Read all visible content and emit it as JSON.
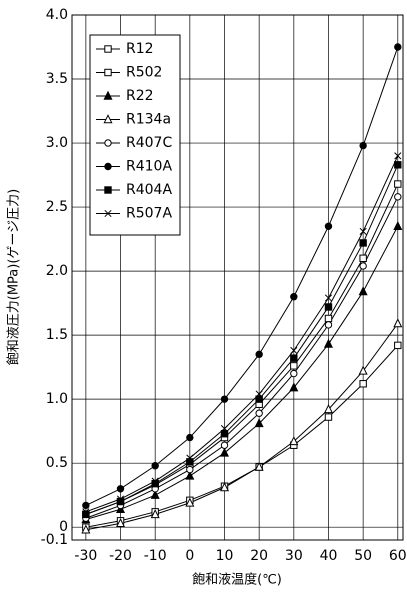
{
  "chart_data": {
    "type": "line",
    "x_label": "飽和液温度(℃)",
    "y_label": "飽和液圧力(MPa)(ゲージ圧力)",
    "x": [
      -30,
      -20,
      -10,
      0,
      10,
      20,
      30,
      40,
      50,
      60
    ],
    "xlim": [
      -34,
      61.5
    ],
    "xticks": [
      -30,
      -20,
      -10,
      0,
      10,
      20,
      30,
      40,
      50,
      60
    ],
    "ylim": [
      -0.1,
      4.0
    ],
    "yticks": [
      -0.1,
      0,
      0.5,
      {
        "value": 1,
        "label": "1.0"
      },
      1.5,
      {
        "value": 2,
        "label": "2.0"
      },
      2.5,
      {
        "value": 3,
        "label": "3.0"
      },
      3.5,
      {
        "value": 4,
        "label": "4.0"
      }
    ],
    "grid": true,
    "legend": "upper left",
    "series": [
      {
        "name": "R12",
        "color": "#000000",
        "marker": "square-open",
        "values": [
          0.0,
          0.05,
          0.12,
          0.21,
          0.32,
          0.47,
          0.64,
          0.86,
          1.12,
          1.42
        ]
      },
      {
        "name": "R502",
        "color": "#000000",
        "marker": "square-open",
        "values": [
          0.1,
          0.2,
          0.33,
          0.49,
          0.7,
          0.96,
          1.26,
          1.63,
          2.1,
          2.68
        ]
      },
      {
        "name": "R22",
        "color": "#000000",
        "marker": "triangle-filled",
        "values": [
          0.06,
          0.14,
          0.25,
          0.4,
          0.58,
          0.81,
          1.09,
          1.43,
          1.84,
          2.35
        ]
      },
      {
        "name": "R134a",
        "color": "#000000",
        "marker": "triangle-open",
        "values": [
          -0.02,
          0.03,
          0.1,
          0.19,
          0.31,
          0.47,
          0.67,
          0.92,
          1.22,
          1.59
        ]
      },
      {
        "name": "R407C",
        "color": "#000000",
        "marker": "circle-open",
        "values": [
          0.07,
          0.17,
          0.3,
          0.45,
          0.64,
          0.89,
          1.2,
          1.58,
          2.04,
          2.58
        ]
      },
      {
        "name": "R410A",
        "color": "#000000",
        "marker": "circle-filled",
        "values": [
          0.17,
          0.3,
          0.48,
          0.7,
          1.0,
          1.35,
          1.8,
          2.35,
          2.98,
          3.75
        ]
      },
      {
        "name": "R404A",
        "color": "#000000",
        "marker": "square-filled",
        "values": [
          0.1,
          0.2,
          0.34,
          0.51,
          0.73,
          1.0,
          1.32,
          1.72,
          2.22,
          2.83
        ]
      },
      {
        "name": "R507A",
        "color": "#000000",
        "marker": "cross",
        "values": [
          0.12,
          0.22,
          0.36,
          0.54,
          0.77,
          1.04,
          1.38,
          1.79,
          2.31,
          2.9
        ]
      }
    ]
  }
}
